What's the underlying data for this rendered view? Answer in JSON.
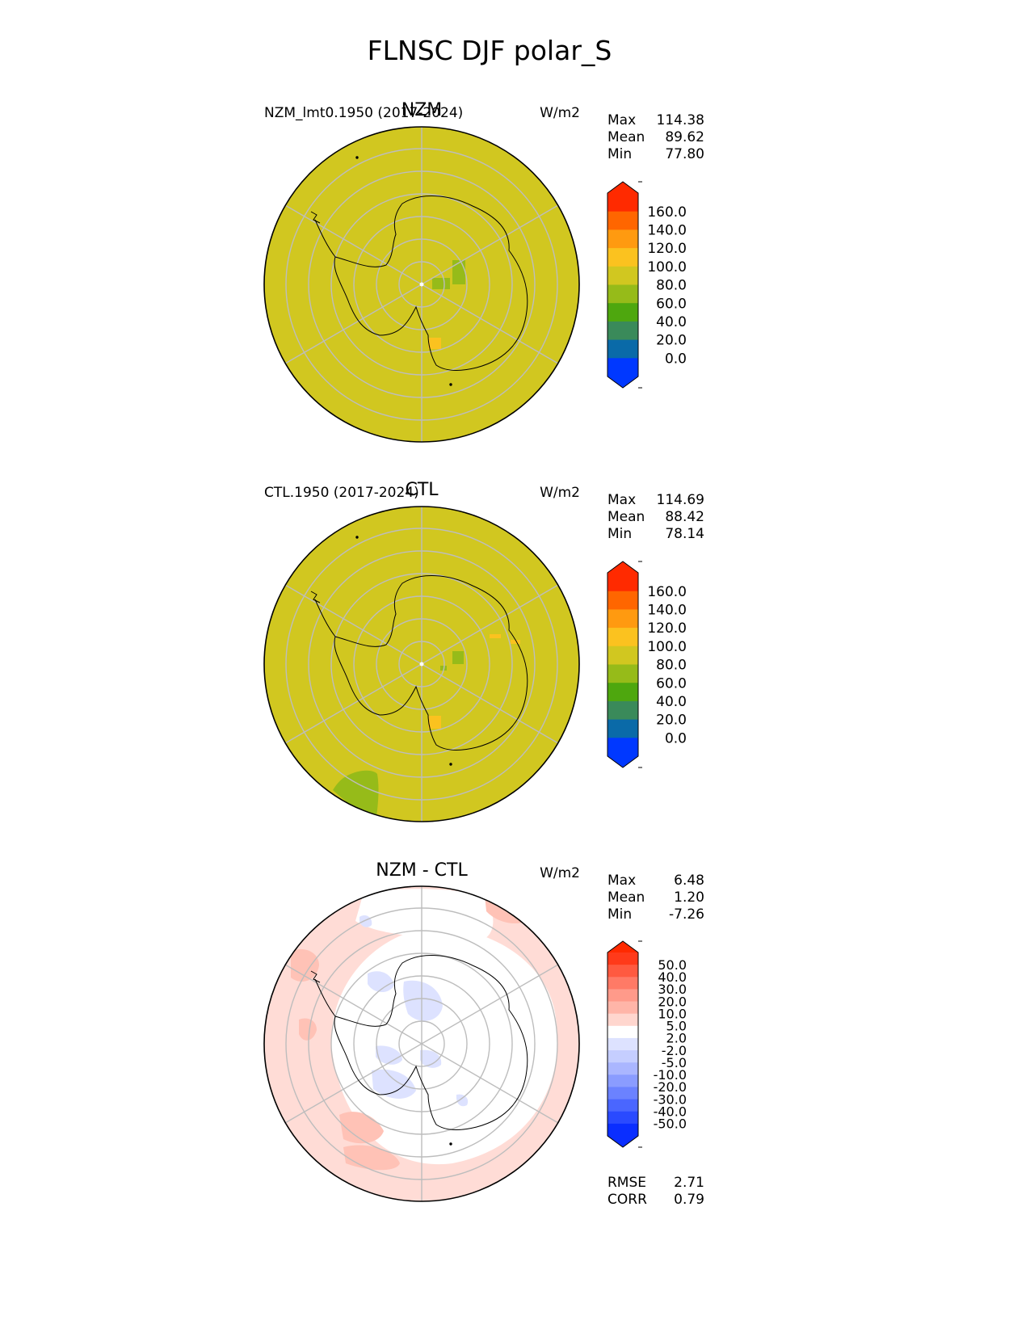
{
  "title": "FLNSC DJF polar_S",
  "panels": [
    {
      "id": "test",
      "center_label": "NZM",
      "left_label": "NZM_lmt0.1950 (2017-2024)",
      "units": "W/m2",
      "stats": [
        {
          "label": "Max",
          "value": "114.38"
        },
        {
          "label": "Mean",
          "value": "89.62"
        },
        {
          "label": "Min",
          "value": "77.80"
        }
      ],
      "colorbar": {
        "ticks": [
          "160.0",
          "140.0",
          "120.0",
          "100.0",
          "80.0",
          "60.0",
          "40.0",
          "20.0",
          "0.0"
        ],
        "colors": [
          "#ff2a00",
          "#ff6600",
          "#ff9a10",
          "#fbc21f",
          "#d1c720",
          "#96bb19",
          "#4ea70e",
          "#3a8a5a",
          "#0a6aa8",
          "#0038ff"
        ],
        "upper_extend": "#ff2a00",
        "lower_extend": "#0038ff"
      },
      "field_color": "#d1c720",
      "anomalies": [
        {
          "color": "#96bb19",
          "kind": "low",
          "label": "central plateau patch"
        },
        {
          "color": "#fbc21f",
          "kind": "high",
          "label": "ross ice shelf patch"
        }
      ]
    },
    {
      "id": "ref",
      "center_label": "CTL",
      "left_label": "CTL.1950 (2017-2024)",
      "units": "W/m2",
      "stats": [
        {
          "label": "Max",
          "value": "114.69"
        },
        {
          "label": "Mean",
          "value": "88.42"
        },
        {
          "label": "Min",
          "value": "78.14"
        }
      ],
      "colorbar": {
        "ticks": [
          "160.0",
          "140.0",
          "120.0",
          "100.0",
          "80.0",
          "60.0",
          "40.0",
          "20.0",
          "0.0"
        ],
        "colors": [
          "#ff2a00",
          "#ff6600",
          "#ff9a10",
          "#fbc21f",
          "#d1c720",
          "#96bb19",
          "#4ea70e",
          "#3a8a5a",
          "#0a6aa8",
          "#0038ff"
        ],
        "upper_extend": "#ff2a00",
        "lower_extend": "#0038ff"
      },
      "field_color": "#d1c720",
      "anomalies": [
        {
          "color": "#96bb19",
          "kind": "low",
          "label": "central plateau patch"
        },
        {
          "color": "#fbc21f",
          "kind": "high",
          "label": "ross ice shelf patch"
        },
        {
          "color": "#96bb19",
          "kind": "low",
          "label": "southern ocean patch"
        }
      ]
    },
    {
      "id": "diff",
      "center_label": "NZM - CTL",
      "left_label": "",
      "units": "W/m2",
      "stats": [
        {
          "label": "Max",
          "value": "6.48"
        },
        {
          "label": "Mean",
          "value": "1.20"
        },
        {
          "label": "Min",
          "value": "-7.26"
        }
      ],
      "colorbar": {
        "ticks": [
          "50.0",
          "40.0",
          "30.0",
          "20.0",
          "10.0",
          "5.0",
          "2.0",
          "-2.0",
          "-5.0",
          "-10.0",
          "-20.0",
          "-30.0",
          "-40.0",
          "-50.0"
        ],
        "colors": [
          "#ff3a1a",
          "#ff5a40",
          "#ff7a66",
          "#ff9a8a",
          "#ffb5a8",
          "#ffd6ce",
          "#ffffff",
          "#dde2ff",
          "#c5ceff",
          "#aab6ff",
          "#8a9cff",
          "#6b82ff",
          "#4a66ff",
          "#2a4aff",
          "#0a2eff"
        ],
        "upper_extend": "#ff2a00",
        "lower_extend": "#0a2eff"
      },
      "field_color": "#ffffff",
      "positive_color": "#ffdcd6",
      "positive_strong_color": "#ffc2b6",
      "negative_color": "#dde2ff",
      "footer_stats": [
        {
          "label": "RMSE",
          "value": "2.71"
        },
        {
          "label": "CORR",
          "value": "0.79"
        }
      ]
    }
  ]
}
